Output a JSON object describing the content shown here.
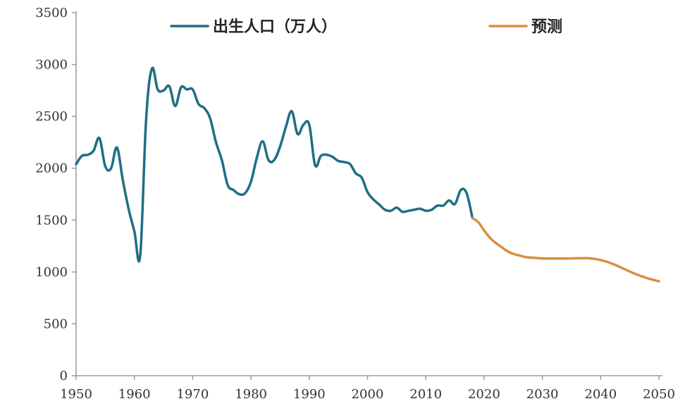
{
  "chart_data": {
    "type": "line",
    "title": "",
    "xlabel": "",
    "ylabel": "",
    "xlim": [
      1950,
      2050
    ],
    "ylim": [
      0,
      3500
    ],
    "x_ticks": [
      1950,
      1960,
      1970,
      1980,
      1990,
      2000,
      2010,
      2020,
      2030,
      2040,
      2050
    ],
    "y_ticks": [
      0,
      500,
      1000,
      1500,
      2000,
      2500,
      3000,
      3500
    ],
    "x_tick_labels": [
      "1950",
      "1960",
      "1970",
      "1980",
      "1990",
      "2000",
      "2010",
      "2020",
      "2030",
      "2040",
      "2050"
    ],
    "y_tick_labels": [
      "0",
      "500",
      "1000",
      "1500",
      "2000",
      "2500",
      "3000",
      "3500"
    ],
    "grid": false,
    "legend_position": "top",
    "series": [
      {
        "name": "出生人口（万人）",
        "color": "#1f6e84",
        "x": [
          1950,
          1951,
          1952,
          1953,
          1954,
          1955,
          1956,
          1957,
          1958,
          1959,
          1960,
          1961,
          1962,
          1963,
          1964,
          1965,
          1966,
          1967,
          1968,
          1969,
          1970,
          1971,
          1972,
          1973,
          1974,
          1975,
          1976,
          1977,
          1978,
          1979,
          1980,
          1981,
          1982,
          1983,
          1984,
          1985,
          1986,
          1987,
          1988,
          1989,
          1990,
          1991,
          1992,
          1993,
          1994,
          1995,
          1996,
          1997,
          1998,
          1999,
          2000,
          2001,
          2002,
          2003,
          2004,
          2005,
          2006,
          2007,
          2008,
          2009,
          2010,
          2011,
          2012,
          2013,
          2014,
          2015,
          2016,
          2017,
          2018
        ],
        "values": [
          2040,
          2120,
          2130,
          2170,
          2290,
          2020,
          2000,
          2200,
          1890,
          1610,
          1390,
          1160,
          2460,
          2960,
          2760,
          2750,
          2790,
          2600,
          2780,
          2760,
          2760,
          2620,
          2580,
          2480,
          2250,
          2080,
          1840,
          1790,
          1750,
          1760,
          1870,
          2100,
          2260,
          2080,
          2080,
          2210,
          2400,
          2550,
          2330,
          2420,
          2420,
          2030,
          2120,
          2130,
          2110,
          2070,
          2060,
          2040,
          1950,
          1910,
          1770,
          1700,
          1650,
          1600,
          1590,
          1620,
          1580,
          1590,
          1600,
          1610,
          1590,
          1600,
          1640,
          1640,
          1690,
          1655,
          1790,
          1760,
          1520
        ]
      },
      {
        "name": "预测",
        "color": "#d98f3f",
        "x": [
          2018,
          2019,
          2020,
          2021,
          2022,
          2023,
          2024,
          2025,
          2026,
          2027,
          2028,
          2029,
          2030,
          2032,
          2034,
          2036,
          2038,
          2040,
          2042,
          2044,
          2046,
          2048,
          2050
        ],
        "values": [
          1520,
          1480,
          1400,
          1330,
          1280,
          1240,
          1200,
          1175,
          1160,
          1145,
          1138,
          1135,
          1130,
          1130,
          1130,
          1132,
          1132,
          1115,
          1080,
          1030,
          980,
          940,
          910
        ]
      }
    ]
  }
}
